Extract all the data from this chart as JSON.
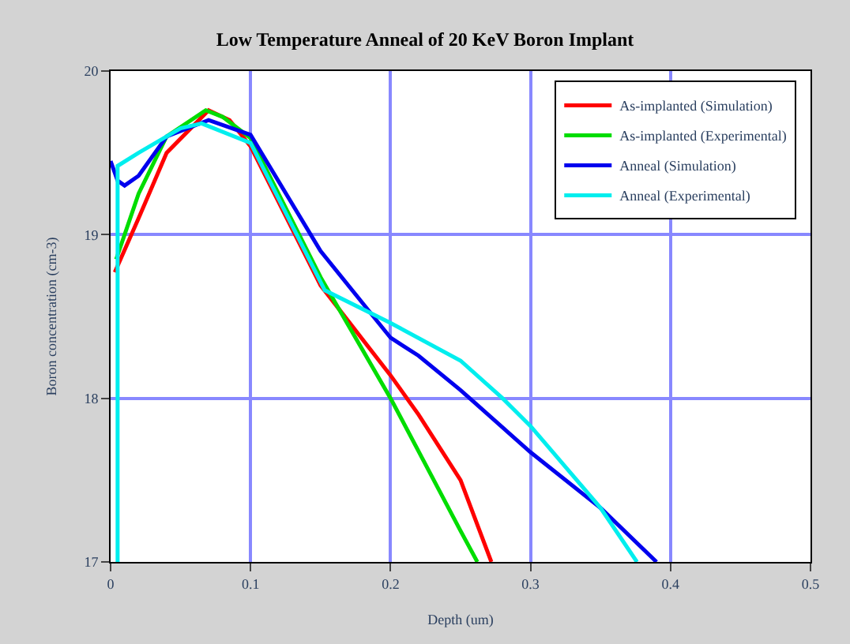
{
  "chart_data": {
    "type": "line",
    "title": "Low Temperature Anneal of 20 KeV Boron Implant",
    "xlabel": "Depth (um)",
    "ylabel": "Boron concentration (cm-3)",
    "series": [
      {
        "name": "As-implanted (Simulation)",
        "color": "#ff0000",
        "x": [
          0.003,
          0.02,
          0.04,
          0.07,
          0.085,
          0.1,
          0.15,
          0.2,
          0.22,
          0.25,
          0.272
        ],
        "values": [
          18.77,
          19.1,
          19.5,
          19.76,
          19.7,
          19.54,
          18.69,
          18.14,
          17.9,
          17.5,
          17.0
        ]
      },
      {
        "name": "As-implanted (Experimental)",
        "color": "#00dd00",
        "x": [
          0.004,
          0.02,
          0.04,
          0.068,
          0.08,
          0.1,
          0.15,
          0.2,
          0.25,
          0.262
        ],
        "values": [
          18.85,
          19.25,
          19.6,
          19.76,
          19.72,
          19.59,
          18.74,
          18.0,
          17.19,
          17.0
        ]
      },
      {
        "name": "Anneal (Simulation)",
        "color": "#0000ee",
        "x": [
          0.0,
          0.005,
          0.01,
          0.02,
          0.04,
          0.07,
          0.1,
          0.15,
          0.2,
          0.22,
          0.25,
          0.3,
          0.35,
          0.39
        ],
        "values": [
          19.45,
          19.33,
          19.3,
          19.36,
          19.6,
          19.7,
          19.61,
          18.9,
          18.37,
          18.26,
          18.05,
          17.67,
          17.33,
          17.0
        ]
      },
      {
        "name": "Anneal (Experimental)",
        "color": "#00eeee",
        "x": [
          0.005,
          0.005,
          0.02,
          0.05,
          0.065,
          0.1,
          0.153,
          0.2,
          0.25,
          0.28,
          0.3,
          0.35,
          0.376
        ],
        "values": [
          17.0,
          19.42,
          19.5,
          19.65,
          19.68,
          19.56,
          18.66,
          18.46,
          18.23,
          18.0,
          17.83,
          17.33,
          17.0
        ]
      }
    ],
    "xlim": [
      0,
      0.5
    ],
    "xticks": [
      0,
      0.1,
      0.2,
      0.3,
      0.4,
      0.5
    ],
    "ylim": [
      17,
      20
    ],
    "yticks": [
      17,
      18,
      19,
      20
    ],
    "grid": true,
    "legend": "top right",
    "marker": "none",
    "line_style": "solid"
  }
}
